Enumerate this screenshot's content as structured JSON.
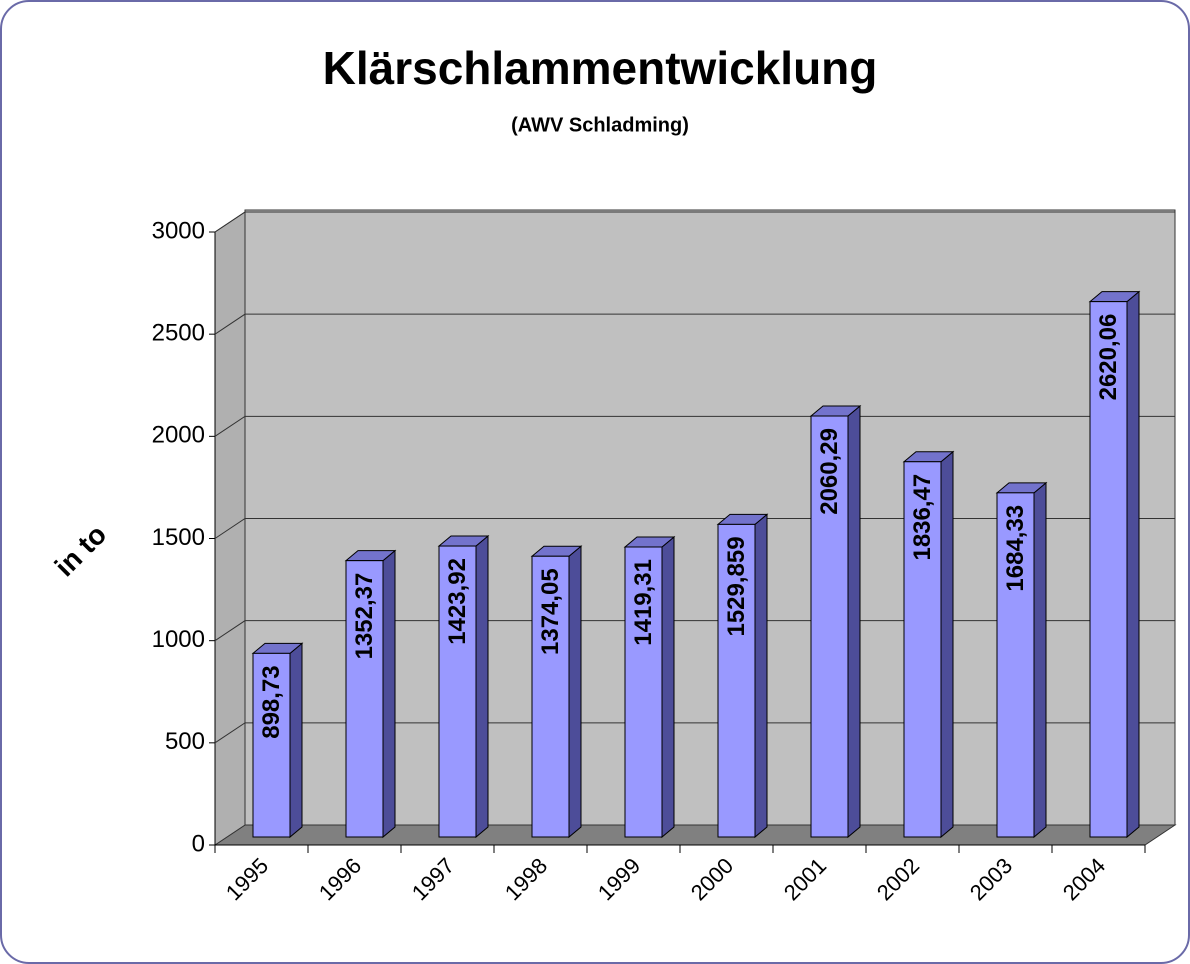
{
  "chart_data": {
    "type": "bar3d",
    "title": "Klärschlammentwicklung",
    "subtitle": "(AWV Schladming)",
    "y_label": "in to",
    "categories": [
      "1995",
      "1996",
      "1997",
      "1998",
      "1999",
      "2000",
      "2001",
      "2002",
      "2003",
      "2004"
    ],
    "values": [
      898.73,
      1352.37,
      1423.92,
      1374.05,
      1419.31,
      1529.859,
      2060.29,
      1836.47,
      1684.33,
      2620.06
    ],
    "value_labels": [
      "898,73",
      "1352,37",
      "1423,92",
      "1374,05",
      "1419,31",
      "1529,859",
      "2060,29",
      "1836,47",
      "1684,33",
      "2620,06"
    ],
    "color": "#9999ff",
    "ylim": [
      0,
      3000
    ],
    "yticks": [
      0,
      500,
      1000,
      1500,
      2000,
      2500,
      3000
    ],
    "grid": true
  }
}
